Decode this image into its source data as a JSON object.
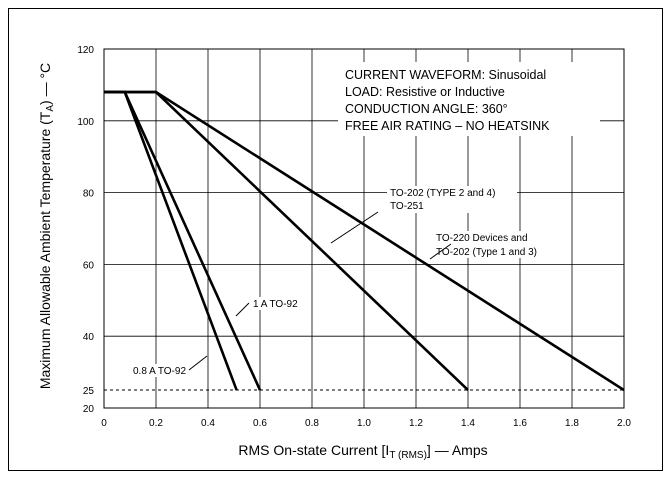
{
  "chart_data": {
    "type": "line",
    "xlabel": "RMS On-state Current [I",
    "xlabel_sub": "T (RMS)",
    "xlabel_tail": "] — Amps",
    "ylabel": "Maximum Allowable Ambient Temperature (T",
    "ylabel_sub": "A",
    "ylabel_tail": ") — °C",
    "xlim": [
      0,
      2.0
    ],
    "ylim": [
      20,
      120
    ],
    "x_ticks": [
      "0",
      "0.2",
      "0.4",
      "0.6",
      "0.8",
      "1.0",
      "1.2",
      "1.4",
      "1.6",
      "1.8",
      "2.0"
    ],
    "x_tick_values": [
      0,
      0.2,
      0.4,
      0.6,
      0.8,
      1.0,
      1.2,
      1.4,
      1.6,
      1.8,
      2.0
    ],
    "y_ticks": [
      "20",
      "25",
      "40",
      "60",
      "80",
      "100",
      "120"
    ],
    "y_tick_values": [
      20,
      25,
      40,
      60,
      80,
      100,
      120
    ],
    "grid": true,
    "reference_line": {
      "y": 25,
      "style": "dashed"
    },
    "notes": [
      "CURRENT WAVEFORM: Sinusoidal",
      "LOAD: Resistive or Inductive",
      "CONDUCTION ANGLE: 360°",
      "FREE AIR RATING – NO HEATSINK"
    ],
    "series": [
      {
        "name": "0.8 A TO-92",
        "x": [
          0,
          0.08,
          0.51
        ],
        "y": [
          108,
          108,
          25
        ]
      },
      {
        "name": "1 A TO-92",
        "x": [
          0,
          0.08,
          0.6
        ],
        "y": [
          108,
          108,
          25
        ]
      },
      {
        "name": "TO-202 (TYPE 2 and 4) TO-251",
        "x": [
          0,
          0.2,
          1.4
        ],
        "y": [
          108,
          108,
          25
        ]
      },
      {
        "name": "TO-220 Devices and TO-202 (Type 1 and 3)",
        "x": [
          0,
          0.2,
          2.0
        ],
        "y": [
          108,
          108,
          25
        ]
      }
    ],
    "annotations": [
      {
        "lines": [
          "TO-202 (TYPE 2 and 4)",
          "TO-251"
        ]
      },
      {
        "lines": [
          "TO-220 Devices and",
          "TO-202 (Type 1 and 3)"
        ]
      },
      {
        "lines": [
          "1 A TO-92"
        ]
      },
      {
        "lines": [
          "0.8 A TO-92"
        ]
      }
    ]
  }
}
